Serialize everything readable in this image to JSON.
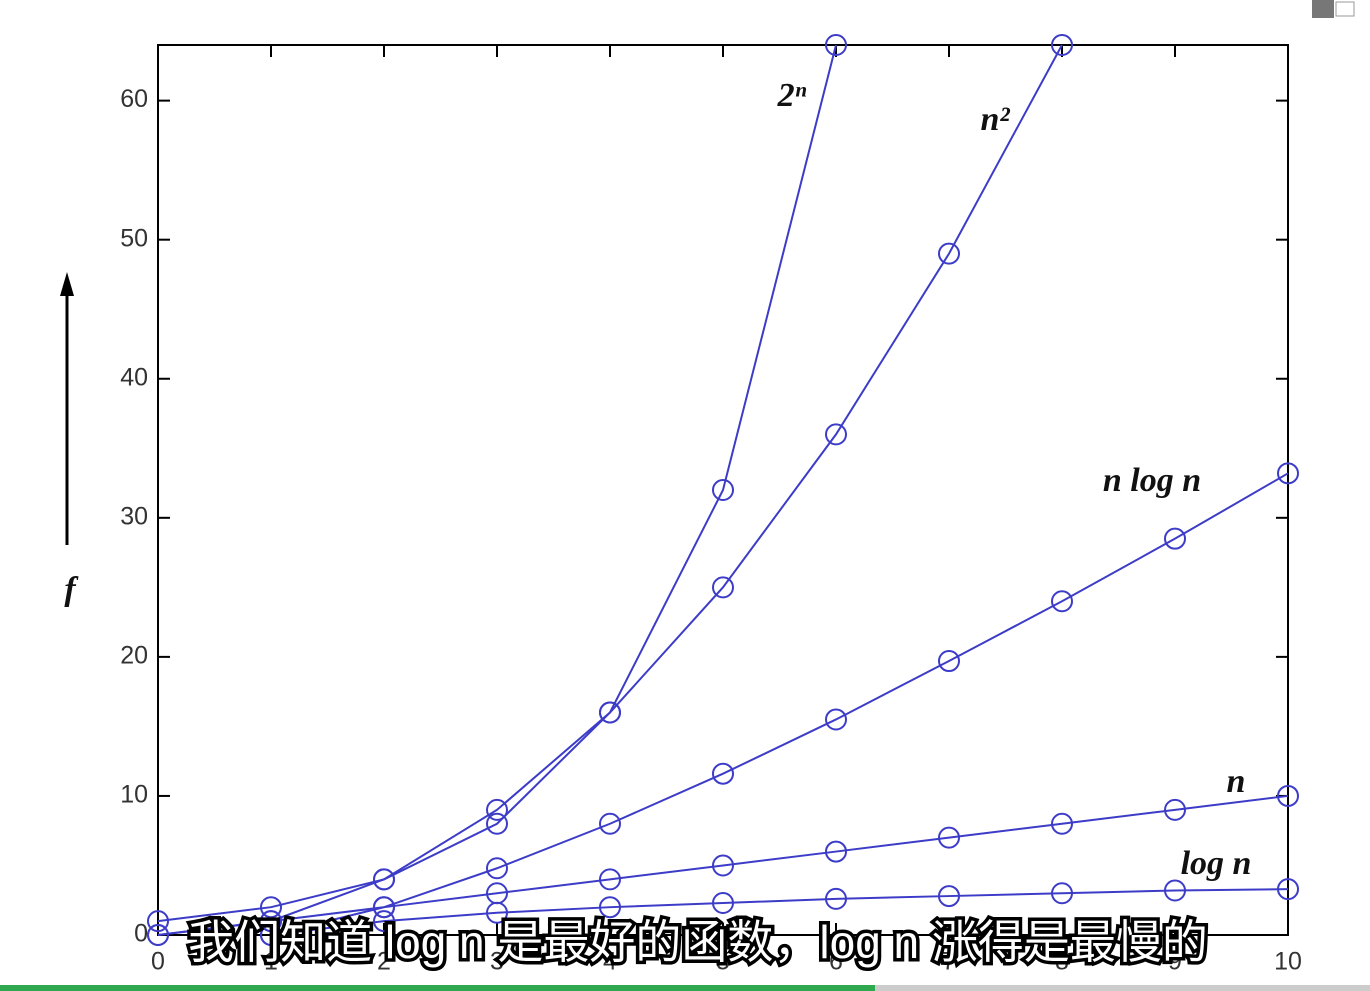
{
  "chart_data": {
    "type": "line",
    "ylabel": "f",
    "caption": "我们知道 log n 是最好的函数，log n 涨得是最慢的",
    "x": [
      0,
      1,
      2,
      3,
      4,
      5,
      6,
      7,
      8,
      9,
      10
    ],
    "series": [
      {
        "name": "2ⁿ",
        "color": "#3c3cc8",
        "values": [
          1,
          2,
          4,
          8,
          16,
          32,
          64,
          null,
          null,
          null,
          null
        ]
      },
      {
        "name": "n²",
        "color": "#3c3cc8",
        "values": [
          0,
          1,
          4,
          9,
          16,
          25,
          36,
          49,
          64,
          null,
          null
        ]
      },
      {
        "name": "n log n",
        "color": "#3c3cc8",
        "values": [
          null,
          0,
          2,
          4.8,
          8,
          11.6,
          15.5,
          19.7,
          24,
          28.5,
          33.2
        ]
      },
      {
        "name": "n",
        "color": "#3c3cc8",
        "values": [
          0,
          1,
          2,
          3,
          4,
          5,
          6,
          7,
          8,
          9,
          10
        ]
      },
      {
        "name": "log n",
        "color": "#3c3cc8",
        "values": [
          null,
          0,
          1,
          1.6,
          2,
          2.3,
          2.6,
          2.8,
          3,
          3.2,
          3.3
        ]
      }
    ],
    "xlim": [
      0,
      10
    ],
    "xticks": [
      0,
      1,
      2,
      3,
      4,
      5,
      6,
      7,
      8,
      9,
      10
    ],
    "ylim": [
      0,
      64
    ],
    "yticks": [
      0,
      10,
      20,
      30,
      40,
      50,
      60
    ]
  }
}
